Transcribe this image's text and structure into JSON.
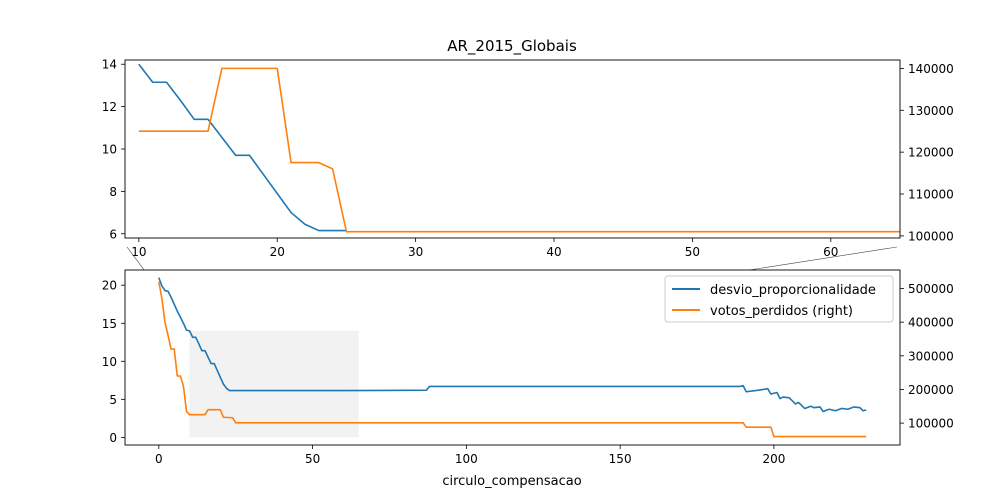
{
  "chart_data": [
    {
      "type": "line",
      "panel": "top",
      "title": "AR_2015_Globais",
      "xlabel": "",
      "ylabel": "",
      "xlim": [
        9,
        65
      ],
      "ylim_left": [
        5.8,
        14.2
      ],
      "ylim_right": [
        99500,
        142000
      ],
      "x_ticks": [
        10,
        20,
        30,
        40,
        50,
        60
      ],
      "y_ticks_left": [
        6,
        8,
        10,
        12,
        14
      ],
      "y_ticks_right": [
        100000,
        110000,
        120000,
        130000,
        140000
      ],
      "grid": false,
      "colors": {
        "desvio": "#1f77b4",
        "votos": "#ff7f0e"
      },
      "series": [
        {
          "axis": "left",
          "color": "#1f77b4",
          "x": [
            10,
            11,
            12,
            13,
            14,
            15,
            16,
            17,
            18,
            19,
            20,
            21,
            22,
            23,
            24,
            25
          ],
          "values": [
            14.0,
            13.15,
            13.15,
            12.3,
            11.4,
            11.4,
            10.55,
            9.7,
            9.7,
            8.8,
            7.9,
            7.0,
            6.45,
            6.15,
            6.15,
            6.15
          ]
        },
        {
          "axis": "right",
          "color": "#ff7f0e",
          "x": [
            10,
            11,
            12,
            13,
            14,
            15,
            16,
            17,
            18,
            19,
            20,
            21,
            22,
            23,
            24,
            25,
            65
          ],
          "values": [
            125000,
            125000,
            125000,
            125000,
            125000,
            125000,
            140000,
            140000,
            140000,
            140000,
            140000,
            117500,
            117500,
            117500,
            116000,
            101000,
            101000
          ]
        }
      ]
    },
    {
      "type": "line",
      "panel": "bottom",
      "title": "",
      "xlabel": "circulo_compensacao",
      "ylabel": "",
      "xlim": [
        -11,
        241
      ],
      "ylim_left": [
        -1.0,
        22.0
      ],
      "ylim_right": [
        35000,
        555000
      ],
      "x_ticks": [
        0,
        50,
        100,
        150,
        200
      ],
      "y_ticks_left": [
        0,
        5,
        10,
        15,
        20
      ],
      "y_ticks_right": [
        100000,
        200000,
        300000,
        400000,
        500000
      ],
      "grid": false,
      "legend_position": "top-right",
      "inset_highlight": {
        "x_range": [
          10,
          65
        ],
        "y_range": [
          0,
          14
        ]
      },
      "series": [
        {
          "name": "desvio_proporcionalidade",
          "axis": "left",
          "color": "#1f77b4",
          "x": [
            0,
            1,
            2,
            3,
            4,
            5,
            6,
            7,
            8,
            9,
            10,
            11,
            12,
            13,
            14,
            15,
            16,
            17,
            18,
            19,
            20,
            21,
            22,
            23,
            24,
            25,
            40,
            60,
            87,
            88,
            100,
            150,
            189,
            190,
            191,
            195,
            198,
            199,
            200,
            201,
            202,
            203,
            205,
            207,
            208,
            210,
            212,
            213,
            215,
            216,
            218,
            220,
            222,
            224,
            226,
            228,
            229,
            230
          ],
          "values": [
            21.0,
            19.9,
            19.3,
            19.2,
            18.4,
            17.5,
            16.6,
            15.8,
            15.0,
            14.1,
            14.0,
            13.15,
            13.15,
            12.3,
            11.4,
            11.4,
            10.55,
            9.7,
            9.7,
            8.8,
            7.9,
            7.0,
            6.45,
            6.15,
            6.15,
            6.15,
            6.15,
            6.15,
            6.2,
            6.7,
            6.7,
            6.7,
            6.7,
            6.8,
            6.0,
            6.2,
            6.4,
            5.7,
            5.8,
            5.9,
            5.1,
            5.3,
            5.2,
            4.4,
            4.6,
            3.8,
            4.1,
            3.9,
            4.0,
            3.4,
            3.7,
            3.5,
            3.8,
            3.7,
            4.0,
            3.9,
            3.5,
            3.6
          ]
        },
        {
          "name": "votos_perdidos (right)",
          "axis": "right",
          "color": "#ff7f0e",
          "x": [
            0,
            1,
            2,
            3,
            4,
            5,
            6,
            7,
            8,
            9,
            10,
            15,
            16,
            20,
            21,
            24,
            25,
            190,
            191,
            199,
            200,
            230
          ],
          "values": [
            520000,
            470000,
            400000,
            360000,
            320000,
            320000,
            240000,
            240000,
            210000,
            135000,
            125000,
            125000,
            140000,
            140000,
            117500,
            116000,
            101000,
            101000,
            88000,
            88000,
            60000,
            60000
          ]
        }
      ]
    }
  ]
}
